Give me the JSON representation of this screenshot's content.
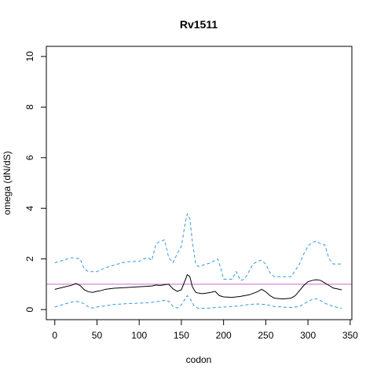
{
  "chart_data": {
    "type": "line",
    "title": "Rv1511",
    "xlabel": "codon",
    "ylabel": "omega (dN/dS)",
    "xlim": [
      -10,
      352
    ],
    "ylim": [
      -0.4,
      10.4
    ],
    "xticks": [
      0,
      50,
      100,
      150,
      200,
      250,
      300,
      350
    ],
    "yticks": [
      0,
      2,
      4,
      6,
      8,
      10
    ],
    "reference_line": {
      "y": 1,
      "color": "#cc66cc"
    },
    "grid": false,
    "legend": "none",
    "series": [
      {
        "role": "estimate",
        "style": "solid",
        "color": "#000000",
        "x": [
          0,
          10,
          20,
          25,
          30,
          35,
          40,
          45,
          50,
          55,
          60,
          70,
          80,
          90,
          100,
          110,
          115,
          120,
          125,
          130,
          135,
          140,
          145,
          150,
          155,
          157,
          160,
          163,
          167,
          170,
          175,
          180,
          185,
          190,
          195,
          200,
          210,
          220,
          230,
          240,
          245,
          250,
          255,
          260,
          270,
          280,
          285,
          290,
          295,
          300,
          305,
          310,
          315,
          320,
          325,
          330,
          340
        ],
        "y": [
          0.8,
          0.88,
          0.96,
          1.03,
          0.95,
          0.78,
          0.7,
          0.68,
          0.72,
          0.75,
          0.8,
          0.84,
          0.86,
          0.88,
          0.9,
          0.92,
          0.93,
          0.97,
          0.95,
          0.98,
          1.0,
          0.82,
          0.72,
          0.78,
          1.2,
          1.38,
          1.3,
          0.9,
          0.68,
          0.65,
          0.63,
          0.65,
          0.68,
          0.72,
          0.55,
          0.5,
          0.48,
          0.52,
          0.58,
          0.7,
          0.8,
          0.7,
          0.55,
          0.45,
          0.42,
          0.45,
          0.55,
          0.75,
          0.95,
          1.1,
          1.15,
          1.18,
          1.15,
          1.05,
          0.95,
          0.85,
          0.78
        ]
      },
      {
        "role": "upper",
        "style": "dashed",
        "color": "#3399dd",
        "x": [
          0,
          10,
          20,
          30,
          35,
          40,
          50,
          60,
          70,
          80,
          90,
          100,
          105,
          110,
          115,
          120,
          125,
          130,
          135,
          140,
          145,
          150,
          155,
          157,
          160,
          163,
          167,
          170,
          175,
          180,
          185,
          190,
          193,
          197,
          200,
          210,
          215,
          220,
          225,
          230,
          235,
          240,
          245,
          250,
          255,
          260,
          270,
          280,
          290,
          295,
          300,
          305,
          310,
          315,
          320,
          325,
          330,
          340
        ],
        "y": [
          1.85,
          1.95,
          2.05,
          2.0,
          1.6,
          1.5,
          1.5,
          1.65,
          1.75,
          1.85,
          1.9,
          1.9,
          2.0,
          2.05,
          1.95,
          2.6,
          2.7,
          2.75,
          2.05,
          1.85,
          2.2,
          2.5,
          3.5,
          3.78,
          3.6,
          2.7,
          1.8,
          1.7,
          1.75,
          1.8,
          1.85,
          1.95,
          2.0,
          1.6,
          1.2,
          1.2,
          1.5,
          1.15,
          1.2,
          1.5,
          1.8,
          1.9,
          1.95,
          1.8,
          1.45,
          1.3,
          1.3,
          1.3,
          1.8,
          2.2,
          2.5,
          2.65,
          2.7,
          2.6,
          2.55,
          2.0,
          1.8,
          1.8
        ]
      },
      {
        "role": "lower",
        "style": "dashed",
        "color": "#3399dd",
        "x": [
          0,
          10,
          20,
          25,
          30,
          35,
          40,
          45,
          50,
          60,
          70,
          80,
          90,
          100,
          110,
          120,
          125,
          130,
          135,
          140,
          145,
          150,
          155,
          157,
          160,
          165,
          170,
          180,
          190,
          200,
          210,
          220,
          230,
          240,
          250,
          260,
          270,
          280,
          290,
          295,
          300,
          305,
          310,
          315,
          320,
          330,
          340
        ],
        "y": [
          0.1,
          0.2,
          0.3,
          0.32,
          0.3,
          0.22,
          0.1,
          0.06,
          0.1,
          0.15,
          0.2,
          0.22,
          0.24,
          0.25,
          0.27,
          0.3,
          0.34,
          0.36,
          0.33,
          0.12,
          0.06,
          0.18,
          0.45,
          0.55,
          0.45,
          0.15,
          0.05,
          0.05,
          0.08,
          0.1,
          0.12,
          0.15,
          0.2,
          0.22,
          0.2,
          0.12,
          0.1,
          0.08,
          0.12,
          0.22,
          0.32,
          0.4,
          0.42,
          0.35,
          0.25,
          0.12,
          0.05
        ]
      }
    ]
  }
}
